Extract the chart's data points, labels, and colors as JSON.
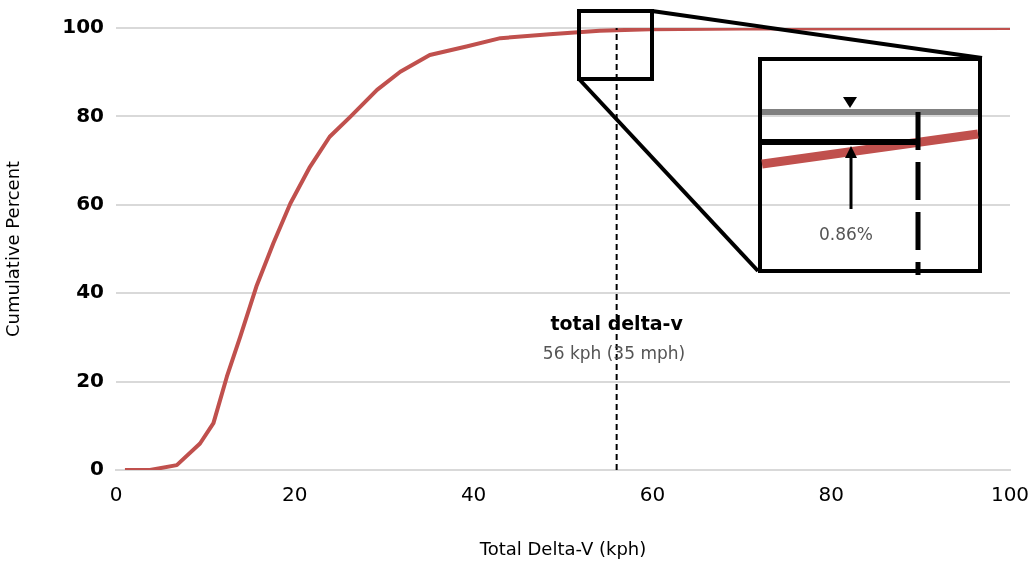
{
  "chart_data": {
    "type": "line",
    "xlabel": "Total Delta-V (kph)",
    "ylabel": "Cumulative Percent",
    "x": [
      1,
      3.8,
      6.8,
      9.4,
      10.9,
      12.4,
      13.9,
      15.7,
      17.6,
      19.5,
      21.7,
      23.9,
      26.2,
      29.2,
      31.8,
      35.1,
      39.2,
      43,
      48.5,
      54.1,
      59.7,
      70,
      100
    ],
    "series": [
      {
        "color": "#c0504d",
        "values": [
          0,
          0,
          1.1,
          6,
          10.6,
          21.1,
          30.2,
          41.5,
          51.3,
          60.3,
          68.6,
          75.4,
          79.9,
          86,
          90.1,
          93.9,
          95.8,
          97.7,
          98.6,
          99.4,
          99.7,
          99.9,
          100
        ]
      }
    ],
    "xlim": [
      0,
      100
    ],
    "xticks": [
      0,
      20,
      40,
      60,
      80,
      100
    ],
    "ylim": [
      0,
      100
    ],
    "yticks": [
      0,
      20,
      40,
      60,
      80,
      100
    ],
    "grid": "y",
    "marker": "none",
    "line_style": "solid",
    "legend": false,
    "ref_lines": [
      {
        "axis": "x",
        "value": 56,
        "label": "total delta-v",
        "color": "#000000",
        "line_style": "dashed"
      }
    ],
    "annotations": [
      "56 kph (35 mph)",
      "0.86%"
    ]
  }
}
